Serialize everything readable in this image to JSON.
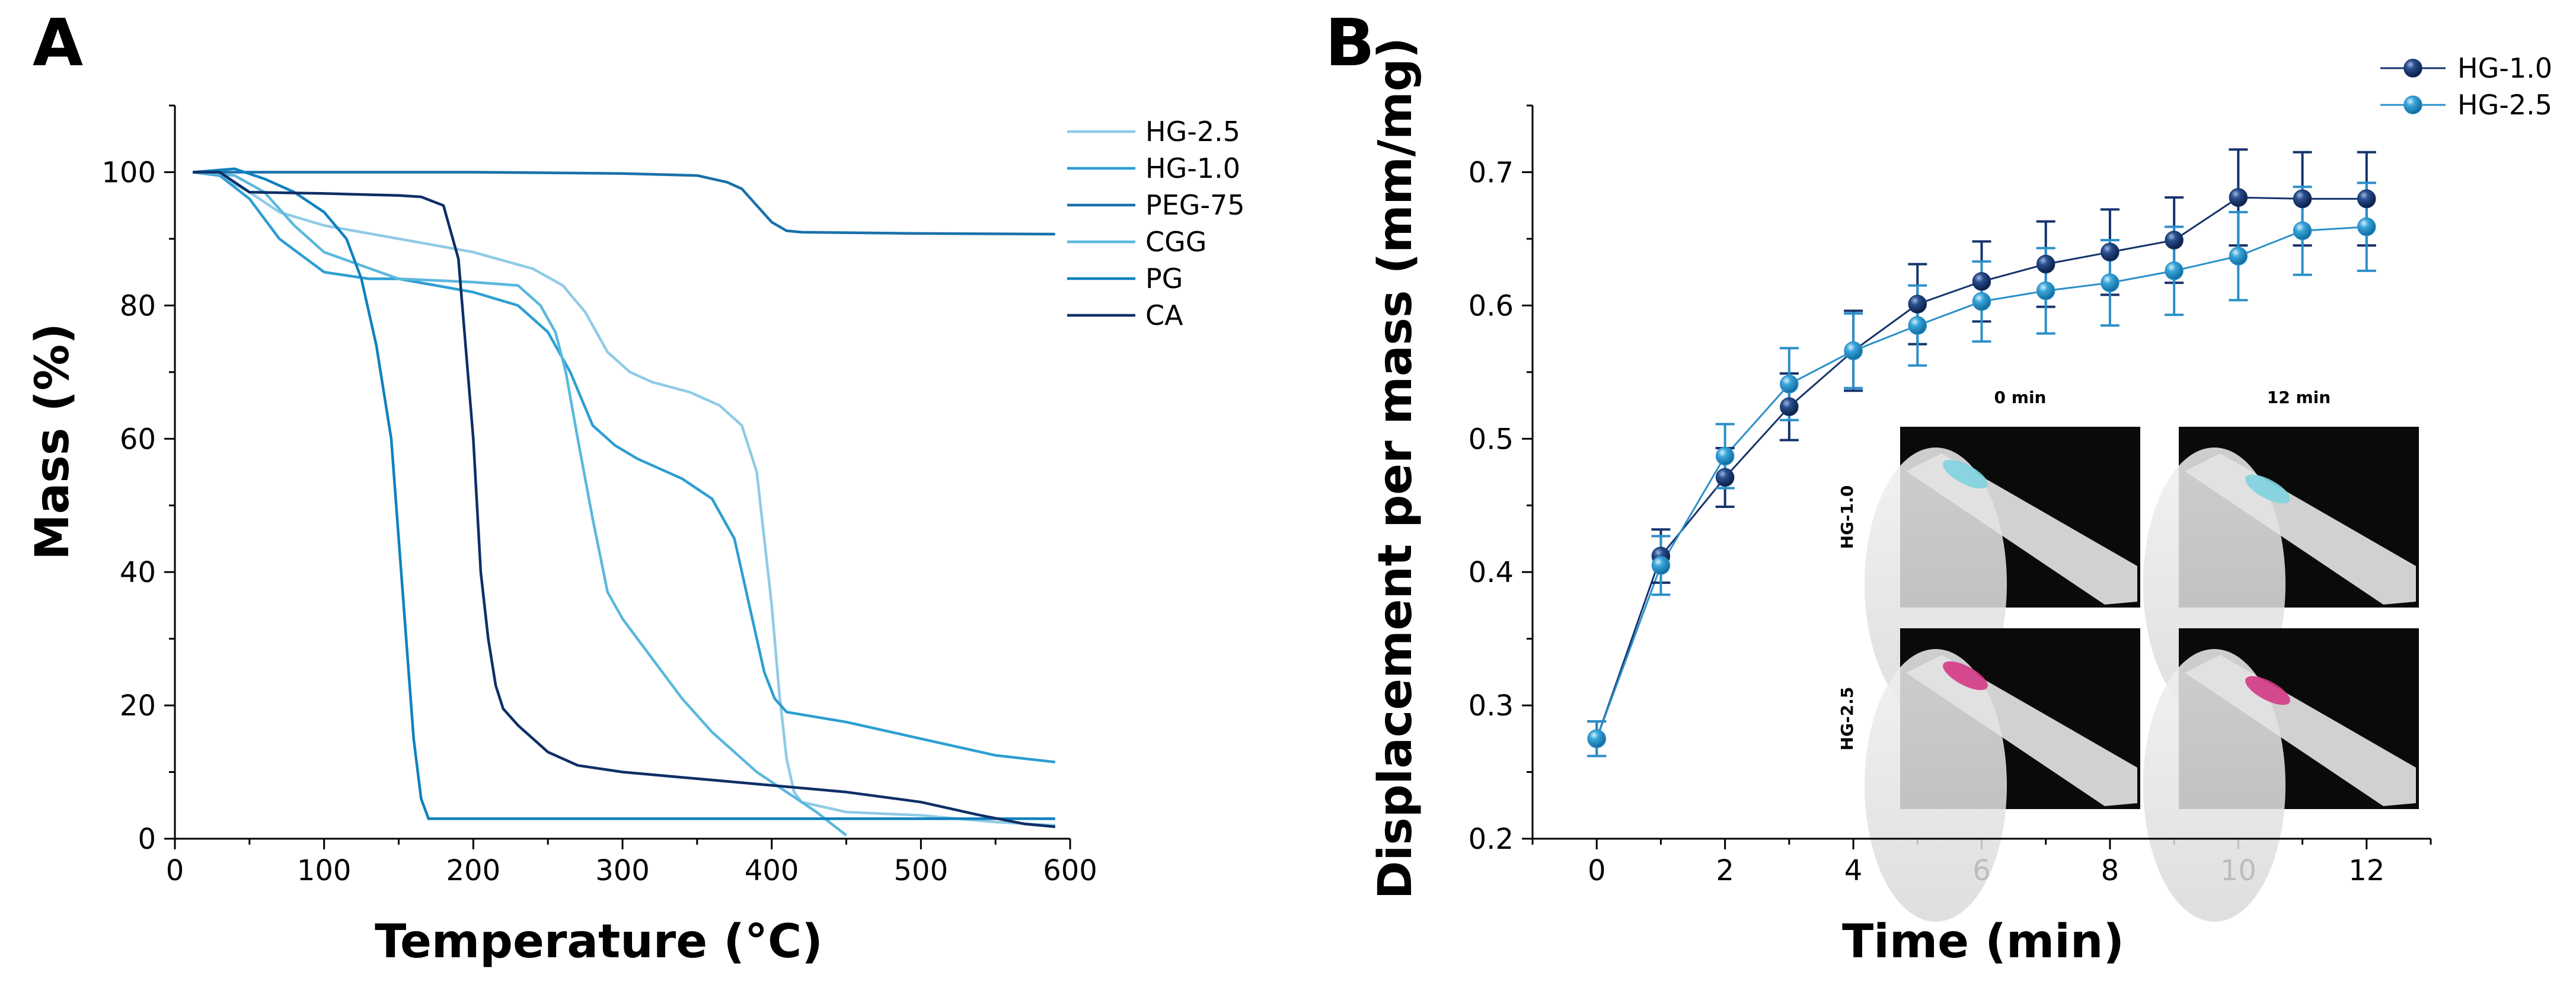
{
  "chart_data": [
    {
      "panel": "A",
      "type": "line",
      "xlabel": "Temperature (°C)",
      "ylabel": "Mass (%)",
      "xlim": [
        0,
        600
      ],
      "ylim": [
        0,
        110
      ],
      "xticks": [
        0,
        100,
        200,
        300,
        400,
        500,
        600
      ],
      "yticks": [
        0,
        20,
        40,
        60,
        80,
        100
      ],
      "grid": false,
      "legend": "top-right",
      "series": [
        {
          "name": "HG-2.5",
          "color": "#8fcbe6",
          "points": [
            [
              12,
              100
            ],
            [
              30,
              99.5
            ],
            [
              50,
              97
            ],
            [
              70,
              94
            ],
            [
              100,
              92
            ],
            [
              150,
              90
            ],
            [
              200,
              88
            ],
            [
              240,
              85.5
            ],
            [
              260,
              83
            ],
            [
              275,
              79
            ],
            [
              290,
              73
            ],
            [
              305,
              70
            ],
            [
              320,
              68.5
            ],
            [
              345,
              67
            ],
            [
              365,
              65
            ],
            [
              380,
              62
            ],
            [
              390,
              55
            ],
            [
              395,
              45
            ],
            [
              400,
              35
            ],
            [
              405,
              22
            ],
            [
              410,
              12
            ],
            [
              415,
              7
            ],
            [
              420,
              5.5
            ],
            [
              450,
              4
            ],
            [
              500,
              3.5
            ],
            [
              550,
              2.5
            ],
            [
              590,
              2
            ]
          ]
        },
        {
          "name": "HG-1.0",
          "color": "#2d9ed2",
          "points": [
            [
              12,
              100
            ],
            [
              30,
              99.5
            ],
            [
              50,
              96
            ],
            [
              70,
              90
            ],
            [
              100,
              85
            ],
            [
              130,
              84
            ],
            [
              150,
              84
            ],
            [
              200,
              82
            ],
            [
              230,
              80
            ],
            [
              250,
              76
            ],
            [
              265,
              70
            ],
            [
              280,
              62
            ],
            [
              295,
              59
            ],
            [
              310,
              57
            ],
            [
              340,
              54
            ],
            [
              360,
              51
            ],
            [
              375,
              45
            ],
            [
              385,
              35
            ],
            [
              395,
              25
            ],
            [
              402,
              21
            ],
            [
              410,
              19
            ],
            [
              450,
              17.5
            ],
            [
              500,
              15
            ],
            [
              550,
              12.5
            ],
            [
              590,
              11.5
            ]
          ]
        },
        {
          "name": "PEG-75",
          "color": "#1a70aa",
          "points": [
            [
              12,
              100
            ],
            [
              100,
              100
            ],
            [
              200,
              100
            ],
            [
              300,
              99.8
            ],
            [
              350,
              99.5
            ],
            [
              370,
              98.5
            ],
            [
              380,
              97.5
            ],
            [
              390,
              95
            ],
            [
              400,
              92.5
            ],
            [
              410,
              91.2
            ],
            [
              420,
              91
            ],
            [
              500,
              90.8
            ],
            [
              590,
              90.7
            ]
          ]
        },
        {
          "name": "CGG",
          "color": "#5ab8dd",
          "points": [
            [
              12,
              100
            ],
            [
              40,
              99.5
            ],
            [
              60,
              97
            ],
            [
              80,
              92
            ],
            [
              100,
              88
            ],
            [
              150,
              84
            ],
            [
              200,
              83.5
            ],
            [
              230,
              83
            ],
            [
              245,
              80
            ],
            [
              255,
              76
            ],
            [
              262,
              70
            ],
            [
              270,
              60
            ],
            [
              280,
              48
            ],
            [
              290,
              37
            ],
            [
              300,
              33
            ],
            [
              320,
              27
            ],
            [
              340,
              21
            ],
            [
              360,
              16
            ],
            [
              390,
              10
            ],
            [
              410,
              7
            ],
            [
              430,
              4
            ],
            [
              450,
              0.5
            ]
          ]
        },
        {
          "name": "PG",
          "color": "#0f81bf",
          "points": [
            [
              12,
              100
            ],
            [
              40,
              100.5
            ],
            [
              60,
              99
            ],
            [
              80,
              97
            ],
            [
              100,
              94
            ],
            [
              115,
              90
            ],
            [
              125,
              84
            ],
            [
              135,
              74
            ],
            [
              145,
              60
            ],
            [
              150,
              45
            ],
            [
              155,
              30
            ],
            [
              160,
              15
            ],
            [
              165,
              6
            ],
            [
              170,
              3
            ],
            [
              200,
              3
            ],
            [
              300,
              3
            ],
            [
              400,
              3
            ],
            [
              500,
              3
            ],
            [
              590,
              3
            ]
          ]
        },
        {
          "name": "CA",
          "color": "#0d2f66",
          "points": [
            [
              12,
              100
            ],
            [
              30,
              100
            ],
            [
              50,
              97
            ],
            [
              100,
              96.8
            ],
            [
              150,
              96.5
            ],
            [
              165,
              96.3
            ],
            [
              180,
              95
            ],
            [
              190,
              87
            ],
            [
              200,
              60
            ],
            [
              205,
              40
            ],
            [
              210,
              30
            ],
            [
              215,
              23
            ],
            [
              220,
              19.5
            ],
            [
              230,
              17
            ],
            [
              250,
              13
            ],
            [
              270,
              11
            ],
            [
              300,
              10
            ],
            [
              350,
              9
            ],
            [
              400,
              8
            ],
            [
              450,
              7
            ],
            [
              500,
              5.5
            ],
            [
              540,
              3.5
            ],
            [
              570,
              2.2
            ],
            [
              590,
              1.8
            ]
          ]
        }
      ]
    },
    {
      "panel": "B",
      "type": "line",
      "xlabel": "Time (min)",
      "ylabel": "Displacement per mass (mm/mg)",
      "xlim": [
        -1,
        13
      ],
      "ylim": [
        0.2,
        0.75
      ],
      "xticks": [
        0,
        2,
        4,
        6,
        8,
        10,
        12
      ],
      "yticks": [
        0.2,
        0.3,
        0.4,
        0.5,
        0.6,
        0.7
      ],
      "grid": false,
      "legend": "top-right",
      "series": [
        {
          "name": "HG-1.0",
          "color": "#14336b",
          "x": [
            0,
            1,
            2,
            3,
            4,
            5,
            6,
            7,
            8,
            9,
            10,
            11,
            12
          ],
          "y": [
            0.275,
            0.412,
            0.471,
            0.524,
            0.566,
            0.601,
            0.618,
            0.631,
            0.64,
            0.649,
            0.681,
            0.68,
            0.68
          ],
          "err": [
            0.013,
            0.02,
            0.022,
            0.025,
            0.03,
            0.03,
            0.03,
            0.032,
            0.032,
            0.032,
            0.036,
            0.035,
            0.035
          ]
        },
        {
          "name": "HG-2.5",
          "color": "#2a8fc8",
          "x": [
            0,
            1,
            2,
            3,
            4,
            5,
            6,
            7,
            8,
            9,
            10,
            11,
            12
          ],
          "y": [
            0.275,
            0.405,
            0.487,
            0.541,
            0.566,
            0.585,
            0.603,
            0.611,
            0.617,
            0.626,
            0.637,
            0.656,
            0.659
          ],
          "err": [
            0.013,
            0.022,
            0.024,
            0.027,
            0.028,
            0.03,
            0.03,
            0.032,
            0.032,
            0.033,
            0.033,
            0.033,
            0.033
          ]
        }
      ],
      "inset": {
        "column_labels": [
          "0 min",
          "12 min"
        ],
        "row_labels": [
          "HG-1.0",
          "HG-2.5"
        ],
        "drop_colors": [
          "#7fd3e0",
          "#d43a86"
        ]
      }
    }
  ],
  "panel_labels": [
    "A",
    "B"
  ]
}
